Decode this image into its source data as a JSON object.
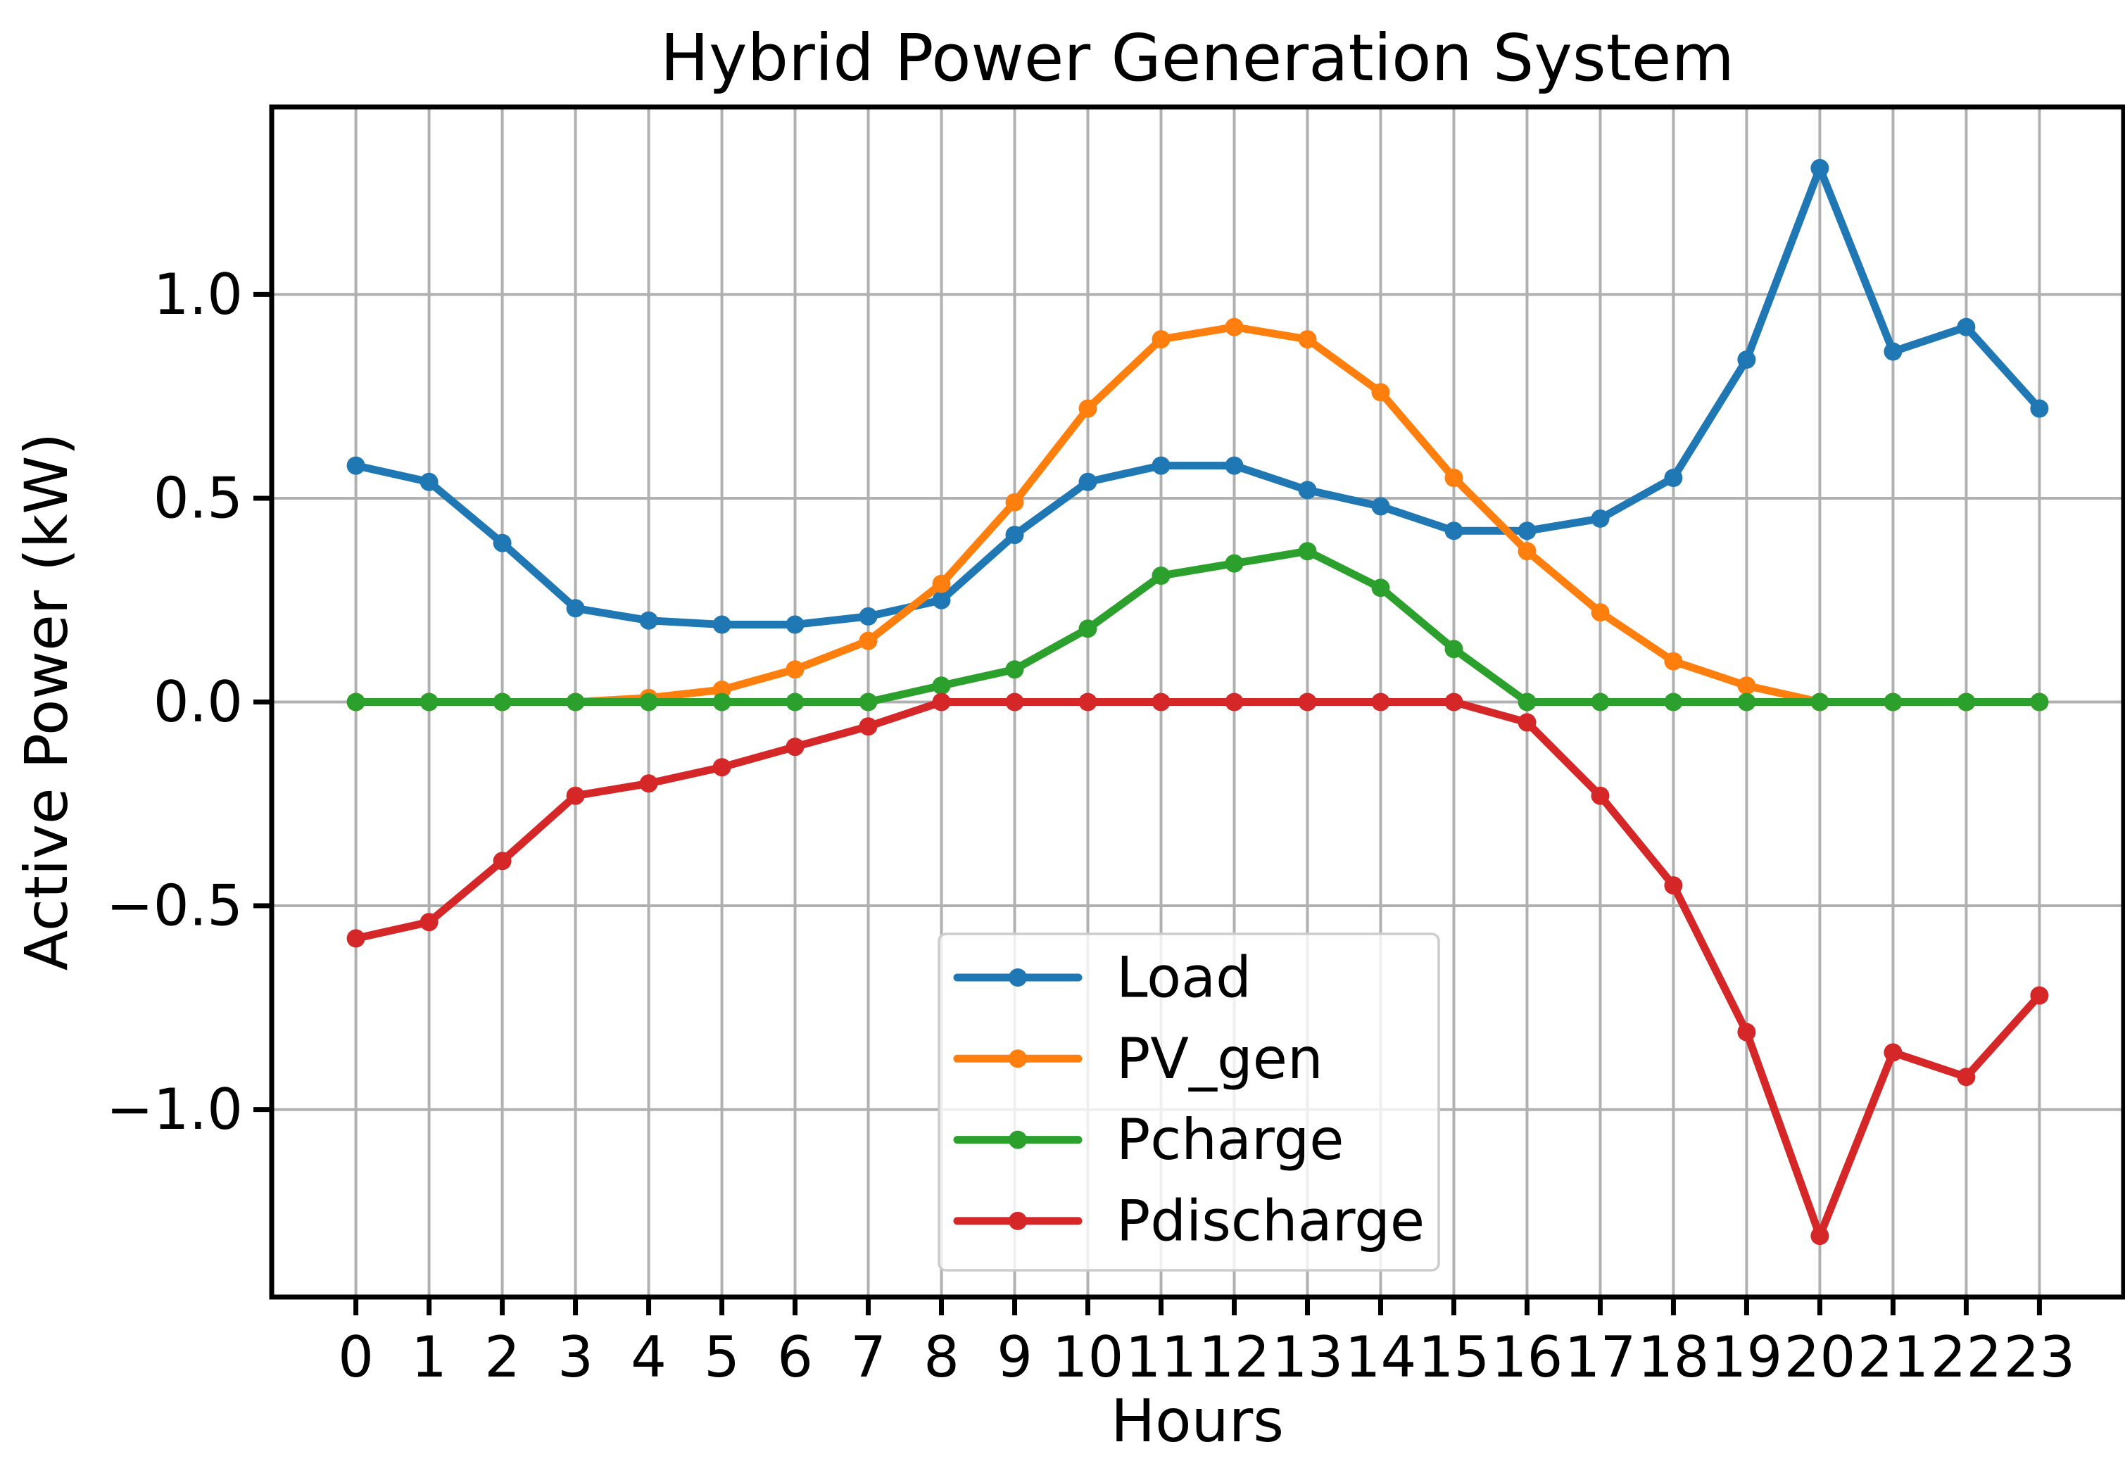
{
  "chart_data": {
    "type": "line",
    "title": "Hybrid Power Generation System",
    "xlabel": "Hours",
    "ylabel": "Active Power (kW)",
    "x": [
      0,
      1,
      2,
      3,
      4,
      5,
      6,
      7,
      8,
      9,
      10,
      11,
      12,
      13,
      14,
      15,
      16,
      17,
      18,
      19,
      20,
      21,
      22,
      23
    ],
    "xlim": [
      -1.15,
      24.15
    ],
    "ylim": [
      -1.46,
      1.46
    ],
    "yticks": [
      -1.0,
      -0.5,
      0.0,
      0.5,
      1.0
    ],
    "grid": true,
    "legend_position": "inside lower-center",
    "series": [
      {
        "name": "Load",
        "color": "#1f77b4",
        "values": [
          0.58,
          0.54,
          0.39,
          0.23,
          0.2,
          0.19,
          0.19,
          0.21,
          0.25,
          0.41,
          0.54,
          0.58,
          0.58,
          0.52,
          0.48,
          0.42,
          0.42,
          0.45,
          0.55,
          0.84,
          1.31,
          0.86,
          0.92,
          0.72
        ]
      },
      {
        "name": "PV_gen",
        "color": "#ff7f0e",
        "values": [
          0.0,
          0.0,
          0.0,
          0.0,
          0.01,
          0.03,
          0.08,
          0.15,
          0.29,
          0.49,
          0.72,
          0.89,
          0.92,
          0.89,
          0.76,
          0.55,
          0.37,
          0.22,
          0.1,
          0.04,
          0.0,
          0.0,
          0.0,
          0.0
        ]
      },
      {
        "name": "Pcharge",
        "color": "#2ca02c",
        "values": [
          0,
          0,
          0,
          0,
          0,
          0,
          0,
          0,
          0.04,
          0.08,
          0.18,
          0.31,
          0.34,
          0.37,
          0.28,
          0.13,
          0,
          0,
          0,
          0,
          0,
          0,
          0,
          0
        ]
      },
      {
        "name": "Pdischarge",
        "color": "#d62728",
        "values": [
          -0.58,
          -0.54,
          -0.39,
          -0.23,
          -0.2,
          -0.16,
          -0.11,
          -0.06,
          0,
          0,
          0,
          0,
          0,
          0,
          0,
          0,
          -0.05,
          -0.23,
          -0.45,
          -0.81,
          -1.31,
          -0.86,
          -0.92,
          -0.72
        ]
      }
    ]
  },
  "style": {
    "background": "#ffffff",
    "grid_color": "#b0b0b0",
    "spine_color": "#000000",
    "text_color": "#000000",
    "legend_border_color": "#cccccc",
    "legend_fill": "rgba(255,255,255,0.8)"
  }
}
